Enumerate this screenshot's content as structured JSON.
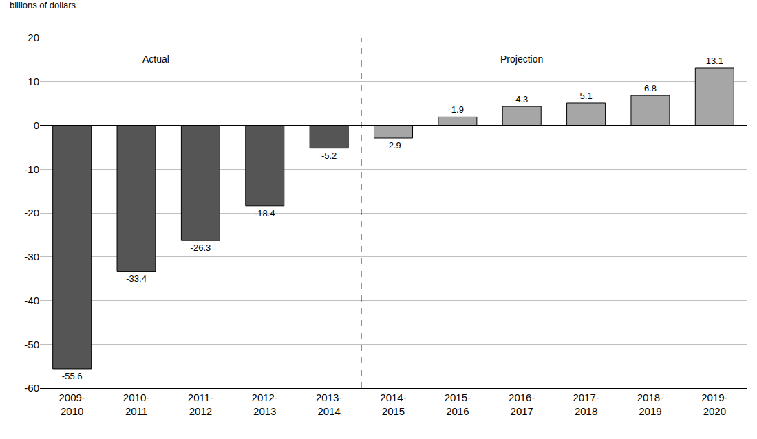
{
  "chart_data": {
    "type": "bar",
    "y_label": "billions of dollars",
    "categories": [
      "2009-2010",
      "2010-2011",
      "2011-2012",
      "2012-2013",
      "2013-2014",
      "2014-2015",
      "2015-2016",
      "2016-2017",
      "2017-2018",
      "2018-2019",
      "2019-2020"
    ],
    "values": [
      -55.6,
      -33.4,
      -26.3,
      -18.4,
      -5.2,
      -2.9,
      1.9,
      4.3,
      5.1,
      6.8,
      13.1
    ],
    "colors": [
      "#555555",
      "#555555",
      "#555555",
      "#555555",
      "#555555",
      "#a6a6a6",
      "#a6a6a6",
      "#a6a6a6",
      "#a6a6a6",
      "#a6a6a6",
      "#a6a6a6"
    ],
    "annotations": [
      "Actual",
      "Projection"
    ],
    "ylim": [
      -60,
      20
    ],
    "yticks": [
      -60,
      -50,
      -40,
      -30,
      -20,
      -10,
      0,
      10,
      20
    ],
    "grid": true,
    "data_labels": true
  }
}
